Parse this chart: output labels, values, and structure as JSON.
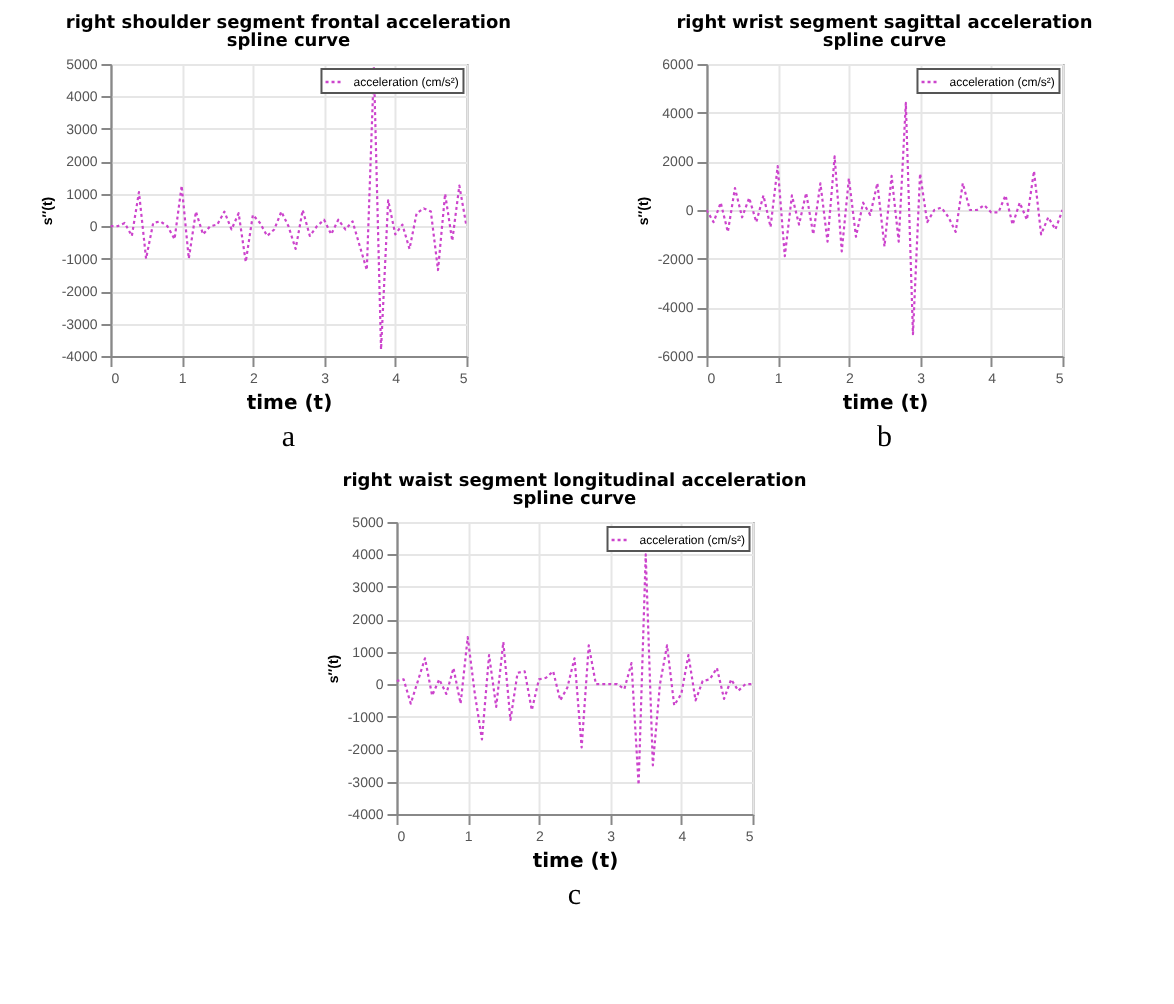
{
  "chart_data": [
    {
      "type": "line",
      "title": "right shoulder segment frontal acceleration spline curve",
      "xlabel": "time (t)",
      "ylabel": "s′′(t)",
      "annotations": [
        "a"
      ],
      "x": [
        0,
        0.1,
        0.2,
        0.3,
        0.4,
        0.5,
        0.6,
        0.7,
        0.8,
        0.9,
        1.0,
        1.1,
        1.2,
        1.3,
        1.4,
        1.5,
        1.6,
        1.7,
        1.8,
        1.9,
        2.0,
        2.1,
        2.2,
        2.3,
        2.4,
        2.5,
        2.6,
        2.7,
        2.8,
        2.9,
        3.0,
        3.1,
        3.2,
        3.3,
        3.4,
        3.5,
        3.6,
        3.7,
        3.8,
        3.9,
        4.0,
        4.1,
        4.2,
        4.3,
        4.4,
        4.5,
        4.6,
        4.7,
        4.8,
        4.9,
        5.0
      ],
      "series": [
        {
          "name": "acceleration (cm/s²)",
          "color": "#cc44cc",
          "values": [
            0,
            0,
            100,
            -300,
            1050,
            -1000,
            100,
            150,
            0,
            -400,
            1250,
            -1000,
            450,
            -250,
            0,
            50,
            450,
            -100,
            400,
            -1100,
            350,
            100,
            -300,
            -100,
            450,
            0,
            -700,
            500,
            -300,
            0,
            200,
            -250,
            200,
            -100,
            150,
            -600,
            -1350,
            4900,
            -3800,
            800,
            -250,
            50,
            -700,
            400,
            550,
            450,
            -1350,
            1000,
            -450,
            1250,
            0
          ]
        }
      ],
      "xlim": [
        0,
        5
      ],
      "xticks": [
        0,
        1,
        2,
        3,
        4,
        5
      ],
      "ylim": [
        -4000,
        5000
      ],
      "yticks": [
        -4000,
        -3000,
        -2000,
        -1000,
        0,
        1000,
        2000,
        3000,
        4000,
        5000
      ],
      "grid": true,
      "legend": "top right",
      "line_style": "dotted"
    },
    {
      "type": "line",
      "title": "right wrist segment sagittal acceleration spline curve",
      "xlabel": "time (t)",
      "ylabel": "s′′(t)",
      "annotations": [
        "b"
      ],
      "x": [
        0,
        0.1,
        0.2,
        0.3,
        0.4,
        0.5,
        0.6,
        0.7,
        0.8,
        0.9,
        1.0,
        1.1,
        1.2,
        1.3,
        1.4,
        1.5,
        1.6,
        1.7,
        1.8,
        1.9,
        2.0,
        2.1,
        2.2,
        2.3,
        2.4,
        2.5,
        2.6,
        2.7,
        2.8,
        2.9,
        3.0,
        3.1,
        3.2,
        3.3,
        3.4,
        3.5,
        3.6,
        3.7,
        3.8,
        3.9,
        4.0,
        4.1,
        4.2,
        4.3,
        4.4,
        4.5,
        4.6,
        4.7,
        4.8,
        4.9,
        5.0
      ],
      "series": [
        {
          "name": "acceleration (cm/s²)",
          "color": "#cc44cc",
          "values": [
            0,
            -500,
            300,
            -900,
            900,
            -300,
            500,
            -500,
            600,
            -700,
            1800,
            -1900,
            600,
            -600,
            700,
            -1000,
            1100,
            -1300,
            2200,
            -1700,
            1300,
            -1100,
            300,
            -200,
            1100,
            -1500,
            1400,
            -1300,
            4400,
            -5100,
            1500,
            -500,
            0,
            100,
            -300,
            -900,
            1100,
            0,
            0,
            200,
            -100,
            -100,
            600,
            -600,
            300,
            -400,
            1600,
            -1000,
            -300,
            -800,
            0
          ]
        }
      ],
      "xlim": [
        0,
        5
      ],
      "xticks": [
        0,
        1,
        2,
        3,
        4,
        5
      ],
      "ylim": [
        -6000,
        6000
      ],
      "yticks": [
        -6000,
        -4000,
        -2000,
        0,
        2000,
        4000,
        6000
      ],
      "grid": true,
      "legend": "top right",
      "line_style": "dotted"
    },
    {
      "type": "line",
      "title": "right waist segment longitudinal acceleration spline curve",
      "xlabel": "time (t)",
      "ylabel": "s′′(t)",
      "annotations": [
        "c"
      ],
      "x": [
        0,
        0.1,
        0.2,
        0.3,
        0.4,
        0.5,
        0.6,
        0.7,
        0.8,
        0.9,
        1.0,
        1.1,
        1.2,
        1.3,
        1.4,
        1.5,
        1.6,
        1.7,
        1.8,
        1.9,
        2.0,
        2.1,
        2.2,
        2.3,
        2.4,
        2.5,
        2.6,
        2.7,
        2.8,
        2.9,
        3.0,
        3.1,
        3.2,
        3.3,
        3.4,
        3.5,
        3.6,
        3.7,
        3.8,
        3.9,
        4.0,
        4.1,
        4.2,
        4.3,
        4.4,
        4.5,
        4.6,
        4.7,
        4.8,
        4.9,
        5.0
      ],
      "series": [
        {
          "name": "acceleration (cm/s²)",
          "color": "#cc44cc",
          "values": [
            100,
            150,
            -600,
            100,
            800,
            -350,
            150,
            -300,
            500,
            -600,
            1450,
            -300,
            -1700,
            900,
            -700,
            1300,
            -1100,
            350,
            400,
            -800,
            150,
            200,
            400,
            -500,
            -100,
            800,
            -1950,
            1200,
            0,
            0,
            0,
            0,
            -150,
            650,
            -3100,
            4000,
            -2500,
            0,
            1200,
            -650,
            -300,
            900,
            -500,
            100,
            150,
            500,
            -450,
            150,
            -200,
            0,
            0
          ]
        }
      ],
      "xlim": [
        0,
        5
      ],
      "xticks": [
        0,
        1,
        2,
        3,
        4,
        5
      ],
      "ylim": [
        -4000,
        5000
      ],
      "yticks": [
        -4000,
        -3000,
        -2000,
        -1000,
        0,
        1000,
        2000,
        3000,
        4000,
        5000
      ],
      "grid": true,
      "legend": "top right",
      "line_style": "dotted"
    }
  ]
}
